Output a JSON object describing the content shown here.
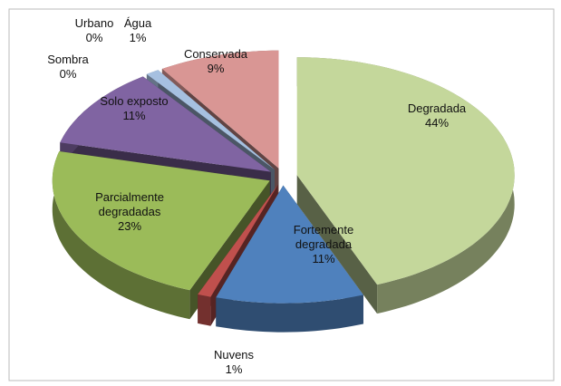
{
  "chart_data": {
    "type": "pie",
    "categories": [
      "Degradada",
      "Fortemente degradada",
      "Nuvens",
      "Parcialmente degradadas",
      "Solo exposto",
      "Sombra",
      "Urbano",
      "Água",
      "Conservada"
    ],
    "values": [
      44,
      11,
      1,
      23,
      11,
      0,
      0,
      1,
      9
    ],
    "value_labels": [
      "44%",
      "11%",
      "1%",
      "23%",
      "11%",
      "0%",
      "0%",
      "1%",
      "9%"
    ],
    "colors": [
      "#c4d79b",
      "#4f81bd",
      "#c0504d",
      "#9bbb59",
      "#8064a2",
      "#4bacc6",
      "#f79646",
      "#a6c0e0",
      "#d99694"
    ]
  }
}
